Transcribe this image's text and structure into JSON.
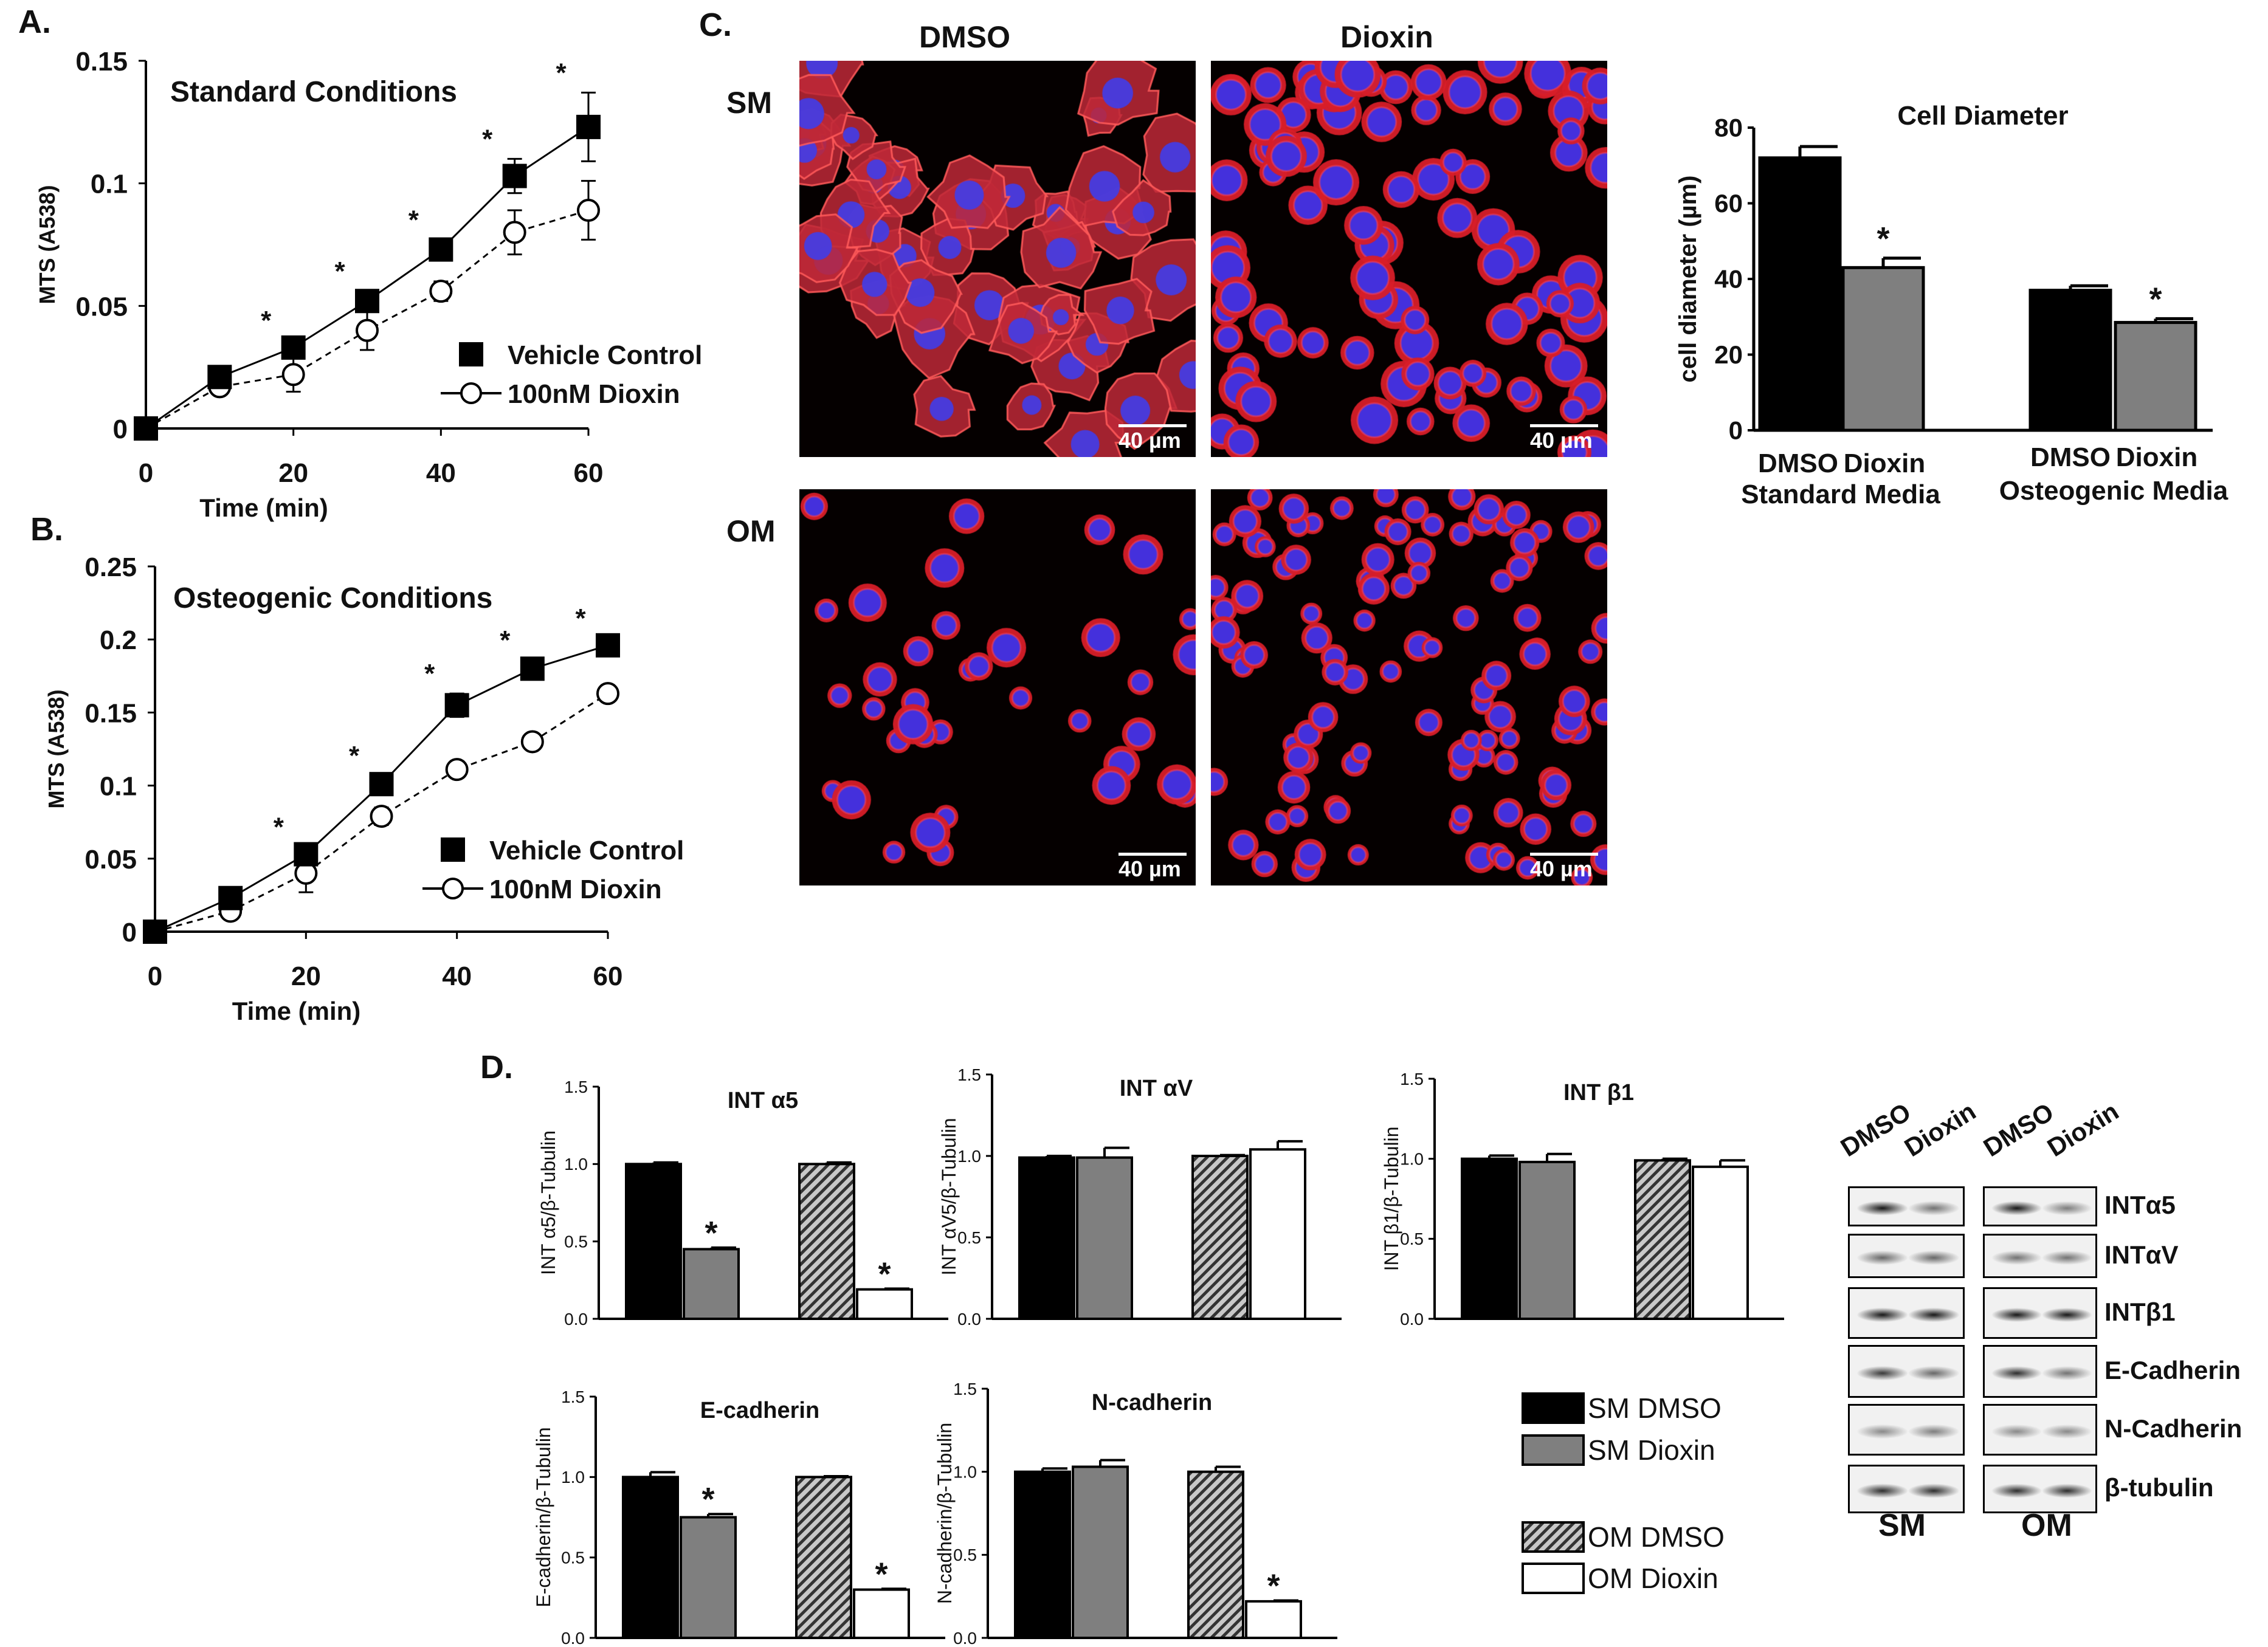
{
  "panel_letters": {
    "a": "A.",
    "b": "B.",
    "c": "C.",
    "d": "D."
  },
  "colors": {
    "black": "#000000",
    "gray": "#7f7f7f",
    "white": "#ffffff",
    "red": "#d01d1a",
    "blue": "#4036d8"
  },
  "micrographs": {
    "col_labels": [
      "DMSO",
      "Dioxin"
    ],
    "row_labels": [
      "SM",
      "OM"
    ],
    "scale_bar": "40 µm"
  },
  "western_blot": {
    "lane_labels": [
      "DMSO",
      "Dioxin",
      "DMSO",
      "Dioxin"
    ],
    "bands": [
      "INTα5",
      "INTαV",
      "INTβ1",
      "E-Cadherin",
      "N-Cadherin",
      "β-tubulin"
    ],
    "group_labels": [
      "SM",
      "OM"
    ]
  },
  "legend_d": {
    "entries": [
      {
        "label": "SM DMSO",
        "fill": "black"
      },
      {
        "label": "SM Dioxin",
        "fill": "gray"
      },
      {
        "label": "OM DMSO",
        "fill": "hatched"
      },
      {
        "label": "OM Dioxin",
        "fill": "white"
      }
    ]
  },
  "chart_data": [
    {
      "id": "A",
      "type": "line",
      "title": "Standard Conditions",
      "xlabel": "Time (min)",
      "ylabel": "MTS  (A538)",
      "xlim": [
        0,
        60
      ],
      "ylim": [
        0,
        0.15
      ],
      "xticks": [
        "0",
        "20",
        "40",
        "60"
      ],
      "yticks": [
        "0",
        "0.05",
        "0.1",
        "0.15"
      ],
      "x": [
        0,
        10,
        20,
        30,
        40,
        50,
        60
      ],
      "series": [
        {
          "name": "Vehicle Control",
          "marker": "filled-square",
          "line": "solid",
          "values": [
            0,
            0.021,
            0.033,
            0.052,
            0.073,
            0.103,
            0.123
          ],
          "errors": [
            0,
            0.002,
            0.003,
            0.004,
            0.004,
            0.007,
            0.014
          ]
        },
        {
          "name": "100nM Dioxin",
          "marker": "open-circle",
          "line": "dashed",
          "values": [
            0,
            0.017,
            0.022,
            0.04,
            0.056,
            0.08,
            0.089
          ],
          "errors": [
            0,
            0.003,
            0.007,
            0.008,
            0.004,
            0.009,
            0.012
          ]
        }
      ],
      "significance": [
        20,
        30,
        40,
        50,
        60
      ],
      "significance_mark": "*",
      "legend_position": "bottom-right"
    },
    {
      "id": "B",
      "type": "line",
      "title": "Osteogenic Conditions",
      "xlabel": "Time (min)",
      "ylabel": "MTS  (A538)",
      "xlim": [
        0,
        60
      ],
      "ylim": [
        0,
        0.25
      ],
      "xticks": [
        "0",
        "20",
        "40",
        "60"
      ],
      "yticks": [
        "0",
        "0.05",
        "0.1",
        "0.15",
        "0.2",
        "0.25"
      ],
      "x": [
        0,
        10,
        20,
        30,
        40,
        50,
        60
      ],
      "series": [
        {
          "name": "Vehicle Control",
          "marker": "filled-square",
          "line": "solid",
          "values": [
            0,
            0.023,
            0.053,
            0.101,
            0.155,
            0.18,
            0.196
          ],
          "errors": [
            0,
            0.003,
            0.005,
            0.006,
            0.008,
            0.006,
            0.005
          ]
        },
        {
          "name": "100nM Dioxin",
          "marker": "open-circle",
          "line": "dashed",
          "values": [
            0,
            0.014,
            0.04,
            0.079,
            0.111,
            0.13,
            0.163
          ],
          "errors": [
            0,
            0.004,
            0.013,
            0.006,
            0.005,
            0.005,
            0.005
          ]
        }
      ],
      "significance": [
        20,
        30,
        40,
        50,
        60
      ],
      "significance_mark": "*",
      "legend_position": "bottom-right"
    },
    {
      "id": "C-diameter",
      "type": "bar",
      "title": "Cell Diameter",
      "ylabel": "cell diameter (µm)",
      "ylim": [
        0,
        80
      ],
      "yticks": [
        "0",
        "20",
        "40",
        "60",
        "80"
      ],
      "categories": [
        "DMSO",
        "Dioxin",
        "DMSO",
        "Dioxin"
      ],
      "group_labels": [
        "Standard Media",
        "Osteogenic Media"
      ],
      "fills": [
        "black",
        "gray",
        "black",
        "gray"
      ],
      "values": [
        72,
        43,
        37,
        28.5
      ],
      "errors": [
        3,
        2.5,
        1.2,
        1
      ],
      "significance": [
        1,
        3
      ],
      "significance_mark": "*"
    },
    {
      "id": "D-int-a5",
      "type": "bar",
      "title": "INT α5",
      "ylabel": "INT α5/β-Tubulin",
      "ylim": [
        0,
        1.5
      ],
      "yticks": [
        "0.0",
        "0.5",
        "1.0",
        "1.5"
      ],
      "categories": [
        "SM DMSO",
        "SM Dioxin",
        "OM DMSO",
        "OM Dioxin"
      ],
      "fills": [
        "black",
        "gray",
        "hatched",
        "white"
      ],
      "values": [
        1.0,
        0.45,
        1.0,
        0.19
      ],
      "errors": [
        0.01,
        0.01,
        0.01,
        0.005
      ],
      "significance": [
        1,
        3
      ],
      "significance_mark": "*"
    },
    {
      "id": "D-int-av",
      "type": "bar",
      "title": "INT αV",
      "ylabel": "INT αV5/β-Tubulin",
      "ylim": [
        0,
        1.5
      ],
      "yticks": [
        "0.0",
        "0.5",
        "1.0",
        "1.5"
      ],
      "categories": [
        "SM DMSO",
        "SM Dioxin",
        "OM DMSO",
        "OM Dioxin"
      ],
      "fills": [
        "black",
        "gray",
        "hatched",
        "white"
      ],
      "values": [
        0.99,
        0.99,
        1.0,
        1.04
      ],
      "errors": [
        0.01,
        0.06,
        0.005,
        0.05
      ],
      "significance": [],
      "significance_mark": "*"
    },
    {
      "id": "D-int-b1",
      "type": "bar",
      "title": "INT β1",
      "ylabel": "INT β1/β-Tubulin",
      "ylim": [
        0,
        1.5
      ],
      "yticks": [
        "0.0",
        "0.5",
        "1.0",
        "1.5"
      ],
      "categories": [
        "SM DMSO",
        "SM Dioxin",
        "OM DMSO",
        "OM Dioxin"
      ],
      "fills": [
        "black",
        "gray",
        "hatched",
        "white"
      ],
      "values": [
        1.0,
        0.98,
        0.99,
        0.95
      ],
      "errors": [
        0.02,
        0.05,
        0.01,
        0.04
      ],
      "significance": [],
      "significance_mark": "*"
    },
    {
      "id": "D-ecad",
      "type": "bar",
      "title": "E-cadherin",
      "ylabel": "E-cadherin/β-Tubulin",
      "ylim": [
        0,
        1.5
      ],
      "yticks": [
        "0.0",
        "0.5",
        "1.0",
        "1.5"
      ],
      "categories": [
        "SM DMSO",
        "SM Dioxin",
        "OM DMSO",
        "OM Dioxin"
      ],
      "fills": [
        "black",
        "gray",
        "hatched",
        "white"
      ],
      "values": [
        1.0,
        0.75,
        1.0,
        0.3
      ],
      "errors": [
        0.03,
        0.02,
        0.005,
        0.005
      ],
      "significance": [
        1,
        3
      ],
      "significance_mark": "*"
    },
    {
      "id": "D-ncad",
      "type": "bar",
      "title": "N-cadherin",
      "ylabel": "N-cadherin/β-Tubulin",
      "ylim": [
        0,
        1.5
      ],
      "yticks": [
        "0.0",
        "0.5",
        "1.0",
        "1.5"
      ],
      "categories": [
        "SM DMSO",
        "SM Dioxin",
        "OM DMSO",
        "OM Dioxin"
      ],
      "fills": [
        "black",
        "gray",
        "hatched",
        "white"
      ],
      "values": [
        1.0,
        1.03,
        1.0,
        0.22
      ],
      "errors": [
        0.02,
        0.04,
        0.03,
        0.005
      ],
      "significance": [
        3
      ],
      "significance_mark": "*"
    }
  ]
}
